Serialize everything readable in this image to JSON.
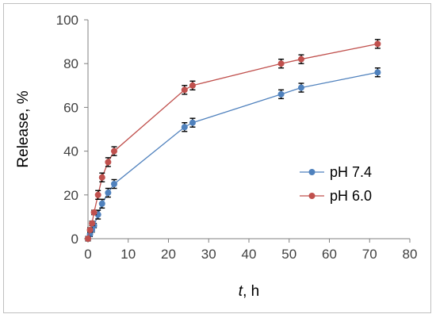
{
  "chart_data": {
    "type": "line",
    "xlabel_italic": "t",
    "xlabel_rest": ", h",
    "ylabel": "Release, %",
    "xlim": [
      0,
      80
    ],
    "ylim": [
      0,
      100
    ],
    "x_ticks": [
      0,
      10,
      20,
      30,
      40,
      50,
      60,
      70,
      80
    ],
    "y_ticks": [
      0,
      20,
      40,
      60,
      80,
      100
    ],
    "grid": false,
    "legend_position": "right",
    "series": [
      {
        "name": "pH 7.4",
        "color": "#4f81bd",
        "x": [
          0,
          0.5,
          1,
          1.5,
          2.5,
          3.5,
          5,
          6.5,
          24,
          26,
          48,
          53,
          72
        ],
        "y": [
          0,
          2,
          4,
          6,
          11,
          16,
          21,
          25,
          51,
          53,
          66,
          69,
          76
        ],
        "err": [
          1,
          1,
          1,
          1,
          2,
          2,
          2,
          2,
          2,
          2,
          2,
          2,
          2
        ]
      },
      {
        "name": "pH 6.0",
        "color": "#c0504d",
        "x": [
          0,
          0.5,
          1,
          1.5,
          2.5,
          3.5,
          5,
          6.5,
          24,
          26,
          48,
          53,
          72
        ],
        "y": [
          0,
          4,
          7,
          12,
          20,
          28,
          35,
          40,
          68,
          70,
          80,
          82,
          89
        ],
        "err": [
          1,
          1,
          1,
          1,
          2,
          2,
          2,
          2,
          2,
          2,
          2,
          2,
          2
        ]
      }
    ]
  }
}
